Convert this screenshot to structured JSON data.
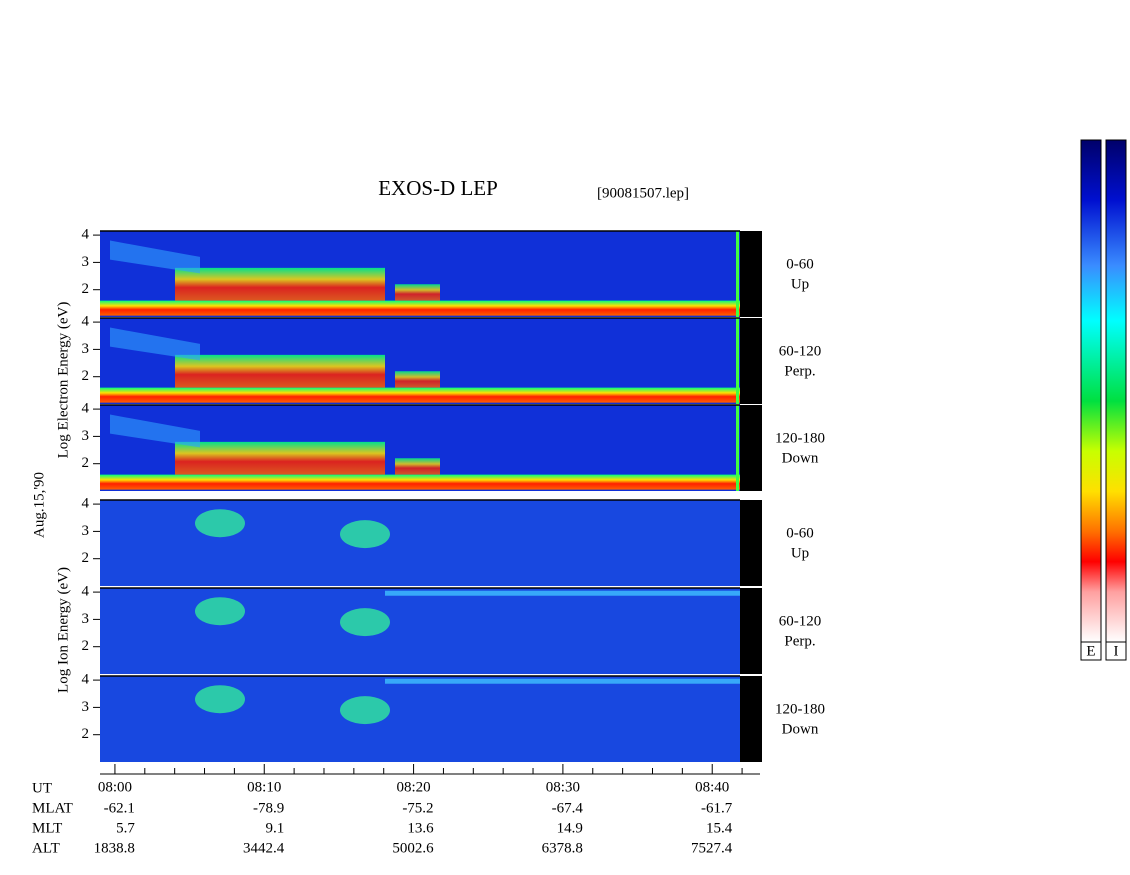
{
  "title": "EXOS-D LEP",
  "file": "[90081507.lep]",
  "date": "Aug.15,'90",
  "electron_label": "Log Electron Energy (eV)",
  "ion_label": "Log Ion Energy (eV)",
  "ylim": [
    1,
    4.15
  ],
  "yticks": [
    2,
    3,
    4
  ],
  "pitch_angles": [
    {
      "range": "0-60",
      "direction": "Up"
    },
    {
      "range": "60-120",
      "direction": "Perp."
    },
    {
      "range": "120-180",
      "direction": "Down"
    }
  ],
  "xlim": [
    479,
    523.2
  ],
  "xticks": [
    {
      "value": 480,
      "label": "08:00"
    },
    {
      "value": 490,
      "label": "08:10"
    },
    {
      "value": 500,
      "label": "08:20"
    },
    {
      "value": 510,
      "label": "08:30"
    },
    {
      "value": 520,
      "label": "08:40"
    }
  ],
  "xminorticks": [
    482,
    484,
    486,
    488,
    492,
    494,
    496,
    498,
    502,
    504,
    506,
    508,
    512,
    514,
    516,
    518,
    522
  ],
  "ut_label": "UT",
  "orbit_rows": [
    {
      "name": "MLAT",
      "values": [
        -62.1,
        -78.9,
        -75.2,
        -67.4,
        -61.7
      ]
    },
    {
      "name": "MLT",
      "values": [
        5.7,
        9.1,
        13.6,
        14.9,
        15.4
      ]
    },
    {
      "name": "ALT",
      "values": [
        1838.8,
        3442.4,
        5002.6,
        6378.8,
        7527.4
      ]
    }
  ],
  "colorbar_labels": [
    "E",
    "I"
  ]
}
